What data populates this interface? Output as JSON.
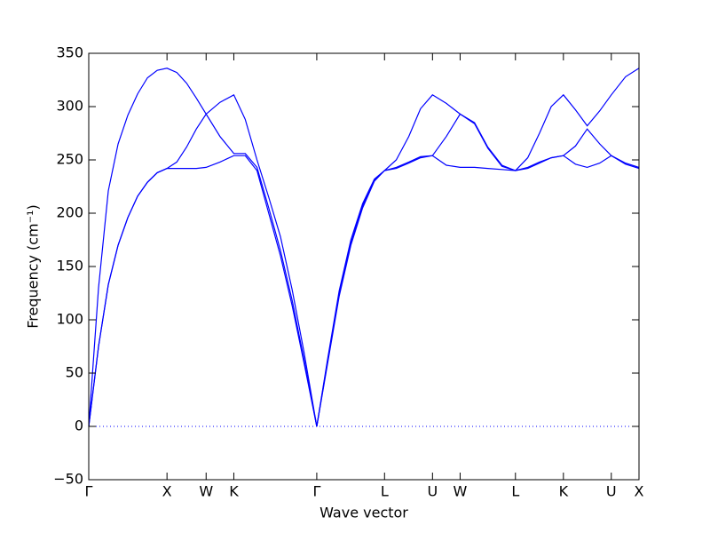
{
  "chart_data": {
    "type": "line",
    "xlabel": "Wave vector",
    "ylabel": "Frequency (cm⁻¹)",
    "x": [
      0,
      0.125,
      0.25,
      0.375,
      0.5,
      0.625,
      0.75,
      0.875,
      1,
      1.125,
      1.25,
      1.375,
      1.5,
      1.677,
      1.854,
      2.0,
      2.15,
      2.3,
      2.45,
      2.6,
      2.75,
      2.914,
      3.05,
      3.2,
      3.35,
      3.5,
      3.65,
      3.78,
      3.93,
      4.09,
      4.24,
      4.393,
      4.57,
      4.746,
      4.93,
      5.1,
      5.28,
      5.453,
      5.61,
      5.76,
      5.91,
      6.066,
      6.22,
      6.37,
      6.53,
      6.678,
      6.86,
      7.032
    ],
    "series": [
      {
        "color": "#0000ff",
        "values": [
          0,
          75,
          133,
          170,
          196,
          216,
          229,
          238,
          242,
          242,
          242,
          242,
          243,
          248,
          254,
          254,
          240,
          200,
          160,
          113,
          60,
          0,
          58,
          122,
          170,
          205,
          230,
          240,
          242,
          247,
          252,
          254,
          245,
          243,
          243,
          242,
          241,
          240,
          242,
          247,
          252,
          254,
          246,
          243,
          247,
          254,
          246,
          242
        ]
      },
      {
        "color": "#0000ff",
        "values": [
          0,
          75,
          133,
          170,
          196,
          216,
          229,
          238,
          242,
          248,
          262,
          279,
          293,
          272,
          256,
          256,
          243,
          205,
          165,
          118,
          63,
          0,
          60,
          124,
          172,
          207,
          231,
          240,
          243,
          248,
          253,
          254,
          272,
          293,
          284,
          261,
          244,
          240,
          243,
          248,
          252,
          254,
          263,
          279,
          265,
          254,
          247,
          243
        ]
      },
      {
        "color": "#0000ff",
        "values": [
          0,
          130,
          221,
          265,
          292,
          312,
          327,
          334,
          336,
          332,
          322,
          308,
          293,
          304,
          311,
          288,
          250,
          215,
          178,
          128,
          70,
          0,
          62,
          127,
          175,
          209,
          232,
          240,
          250,
          272,
          298,
          311,
          303,
          293,
          285,
          262,
          245,
          240,
          252,
          275,
          300,
          311,
          297,
          282,
          296,
          311,
          328,
          336
        ]
      }
    ],
    "xlim": [
      0,
      7.032
    ],
    "xticks": [
      {
        "value": 0,
        "label": "Γ"
      },
      {
        "value": 1,
        "label": "X"
      },
      {
        "value": 1.5,
        "label": "W"
      },
      {
        "value": 1.854,
        "label": "K"
      },
      {
        "value": 2.914,
        "label": "Γ"
      },
      {
        "value": 3.78,
        "label": "L"
      },
      {
        "value": 4.393,
        "label": "U"
      },
      {
        "value": 4.746,
        "label": "W"
      },
      {
        "value": 5.453,
        "label": "L"
      },
      {
        "value": 6.066,
        "label": "K"
      },
      {
        "value": 6.678,
        "label": "U"
      },
      {
        "value": 7.032,
        "label": "X"
      }
    ],
    "ylim": [
      -50,
      350
    ],
    "yticks": [
      {
        "value": -50,
        "label": "−50"
      },
      0,
      50,
      100,
      150,
      200,
      250,
      300,
      350
    ],
    "zero_line": true
  }
}
